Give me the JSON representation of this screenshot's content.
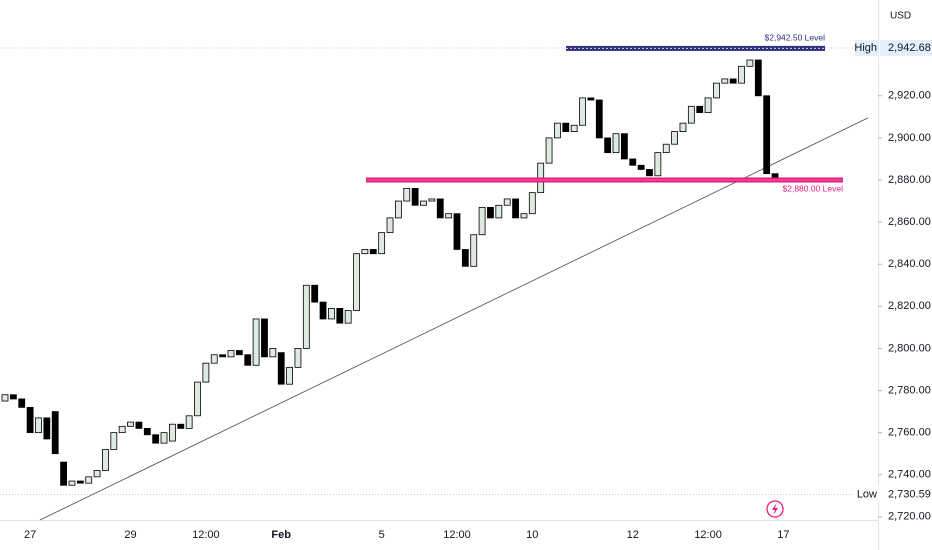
{
  "chart_data": {
    "type": "candlestick",
    "currency": "USD",
    "categories": [
      null,
      null,
      null,
      "27",
      null,
      null,
      null,
      null,
      null,
      null,
      null,
      null,
      null,
      null,
      null,
      "29",
      null,
      null,
      null,
      null,
      null,
      null,
      null,
      null,
      "12:00",
      null,
      null,
      null,
      null,
      null,
      null,
      null,
      null,
      "Feb",
      null,
      null,
      null,
      null,
      null,
      null,
      null,
      null,
      null,
      null,
      null,
      "5",
      null,
      null,
      null,
      null,
      null,
      null,
      null,
      null,
      "12:00",
      null,
      null,
      null,
      null,
      null,
      null,
      null,
      null,
      "10",
      null,
      null,
      null,
      null,
      null,
      null,
      null,
      null,
      null,
      null,
      null,
      "12",
      null,
      null,
      null,
      null,
      null,
      null,
      null,
      null,
      "12:00",
      null,
      null,
      null,
      null,
      null,
      null,
      null,
      null,
      "17"
    ],
    "open": [
      2775,
      2778,
      2776,
      2772,
      2760,
      2767,
      2770,
      2746,
      2735,
      2737,
      2736,
      2739,
      2742,
      2752,
      2760,
      2763,
      2765,
      2762,
      2759,
      2755,
      2756,
      2764,
      2762,
      2768,
      2784,
      2793,
      2797,
      2796,
      2799,
      2797,
      2792,
      2814,
      2796,
      2798,
      2783,
      2791,
      2800,
      2830,
      2822,
      2814,
      2819,
      2812,
      2818,
      2845,
      2847,
      2845,
      2855,
      2862,
      2870,
      2876,
      2868,
      2870,
      2871,
      2862,
      2864,
      2847,
      2839,
      2854,
      2867,
      2862,
      2868,
      2871,
      2862,
      2864,
      2874,
      2888,
      2900,
      2907,
      2903,
      2906,
      2919,
      2918,
      2900,
      2893,
      2902,
      2890,
      2887,
      2885,
      2882,
      2893,
      2897,
      2903,
      2907,
      2915,
      2912,
      2919,
      2926,
      2928,
      2926,
      2934,
      2937,
      2920,
      2883,
      null
    ],
    "high": {
      "label": "High",
      "value": 2942.68,
      "value_label": "2,942.68"
    },
    "low": {
      "label": "Low",
      "value": 2730.59,
      "value_label": "2,730.59"
    },
    "close": [
      2778,
      2776,
      2772,
      2760,
      2767,
      2757,
      2750,
      2735,
      2737,
      2736,
      2739,
      2742,
      2752,
      2760,
      2763,
      2765,
      2762,
      2759,
      2755,
      2760,
      2764,
      2762,
      2768,
      2784,
      2793,
      2797,
      2796,
      2799,
      2797,
      2792,
      2814,
      2796,
      2800,
      2783,
      2791,
      2800,
      2830,
      2822,
      2814,
      2819,
      2812,
      2818,
      2845,
      2847,
      2845,
      2855,
      2862,
      2870,
      2876,
      2868,
      2870,
      2871,
      2862,
      2864,
      2847,
      2839,
      2854,
      2867,
      2862,
      2868,
      2871,
      2862,
      2864,
      2874,
      2888,
      2900,
      2907,
      2903,
      2906,
      2919,
      2918,
      2900,
      2893,
      2902,
      2890,
      2887,
      2885,
      2882,
      2893,
      2897,
      2903,
      2907,
      2915,
      2912,
      2919,
      2926,
      2928,
      2926,
      2934,
      2937,
      2920,
      2883,
      2881,
      null
    ],
    "up_color": "#dde9e1",
    "down_color": "#000000",
    "ylim": [
      2718.5,
      2965.5
    ],
    "yticks": [
      {
        "value": 2720,
        "label": "2,720.00"
      },
      {
        "value": 2740,
        "label": "2,740.00"
      },
      {
        "value": 2760,
        "label": "2,760.00"
      },
      {
        "value": 2780,
        "label": "2,780.00"
      },
      {
        "value": 2800,
        "label": "2,800.00"
      },
      {
        "value": 2820,
        "label": "2,820.00"
      },
      {
        "value": 2840,
        "label": "2,840.00"
      },
      {
        "value": 2860,
        "label": "2,860.00"
      },
      {
        "value": 2880,
        "label": "2,880.00"
      },
      {
        "value": 2900,
        "label": "2,900.00"
      },
      {
        "value": 2920,
        "label": "2,920.00"
      }
    ],
    "grid": false,
    "levels": [
      {
        "label": "$2,942.50 Level",
        "value": 2942.5,
        "color": "#2e2f7f"
      },
      {
        "label": "$2,880.00 Level",
        "value": 2880,
        "color": "#e8197f"
      }
    ],
    "trendline": {
      "values": [
        2718.5,
        2909.5
      ]
    }
  }
}
